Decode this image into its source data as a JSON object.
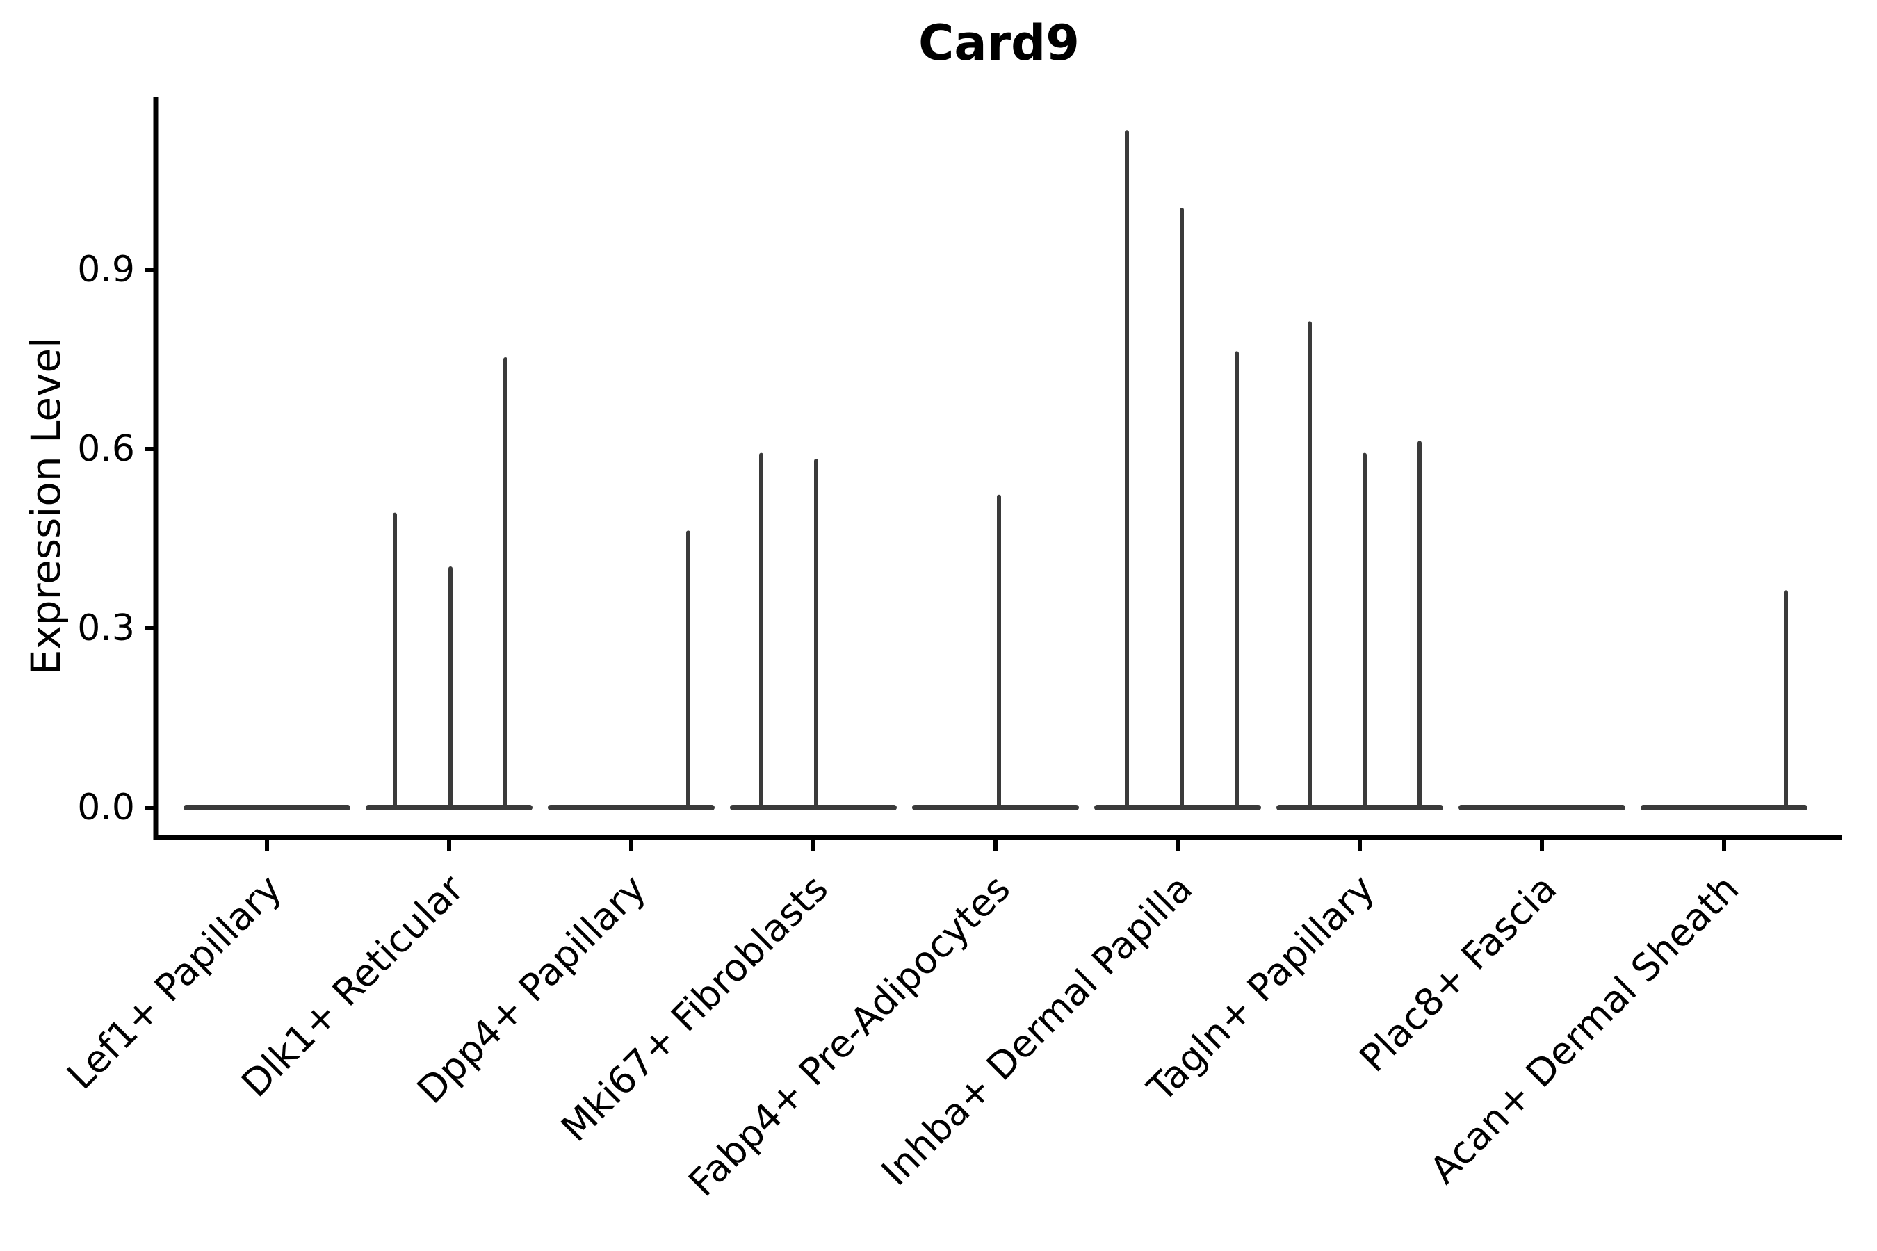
{
  "figure": {
    "title": "Card9"
  },
  "chart_data": {
    "type": "violin",
    "title": "Card9",
    "xlabel": "",
    "ylabel": "Expression Level",
    "ylim": [
      0,
      1.19
    ],
    "grid": false,
    "legend": "none",
    "yticks": [
      {
        "label": "0.0",
        "value": 0.0
      },
      {
        "label": "0.3",
        "value": 0.3
      },
      {
        "label": "0.6",
        "value": 0.6
      },
      {
        "label": "0.9",
        "value": 0.9
      }
    ],
    "categories": [
      "Lef1+ Papillary",
      "Dlk1+ Reticular",
      "Dpp4+ Papillary",
      "Mki67+ Fibroblasts",
      "Fabp4+ Pre-Adipocytes",
      "Inhba+ Dermal Papilla",
      "Tagln+ Papillary",
      "Plac8+ Fascia",
      "Acan+ Dermal Sheath"
    ],
    "series": [
      {
        "category": "Lef1+ Papillary",
        "zero_body": true,
        "spikes": []
      },
      {
        "category": "Dlk1+ Reticular",
        "zero_body": true,
        "spikes": [
          {
            "dx": -78,
            "max": 0.49
          },
          {
            "dx": 2,
            "max": 0.4
          },
          {
            "dx": 81,
            "max": 0.75
          }
        ]
      },
      {
        "category": "Dpp4+ Papillary",
        "zero_body": true,
        "spikes": [
          {
            "dx": 82,
            "max": 0.46
          }
        ]
      },
      {
        "category": "Mki67+ Fibroblasts",
        "zero_body": true,
        "spikes": [
          {
            "dx": -75,
            "max": 0.59
          },
          {
            "dx": 4,
            "max": 0.58
          }
        ]
      },
      {
        "category": "Fabp4+ Pre-Adipocytes",
        "zero_body": true,
        "spikes": [
          {
            "dx": 5,
            "max": 0.52
          }
        ]
      },
      {
        "category": "Inhba+ Dermal Papilla",
        "zero_body": true,
        "spikes": [
          {
            "dx": -73,
            "max": 1.13
          },
          {
            "dx": 6,
            "max": 1.0
          },
          {
            "dx": 85,
            "max": 0.76
          }
        ]
      },
      {
        "category": "Tagln+ Papillary",
        "zero_body": true,
        "spikes": [
          {
            "dx": -72,
            "max": 0.81
          },
          {
            "dx": 7,
            "max": 0.59
          },
          {
            "dx": 86,
            "max": 0.61
          }
        ]
      },
      {
        "category": "Plac8+ Fascia",
        "zero_body": true,
        "spikes": []
      },
      {
        "category": "Acan+ Dermal Sheath",
        "zero_body": true,
        "spikes": [
          {
            "dx": 89,
            "max": 0.36
          }
        ]
      }
    ]
  },
  "style": {
    "background": "#ffffff",
    "axis_color": "#000000",
    "text_color": "#000000",
    "violin_color": "#3a3a3a"
  }
}
